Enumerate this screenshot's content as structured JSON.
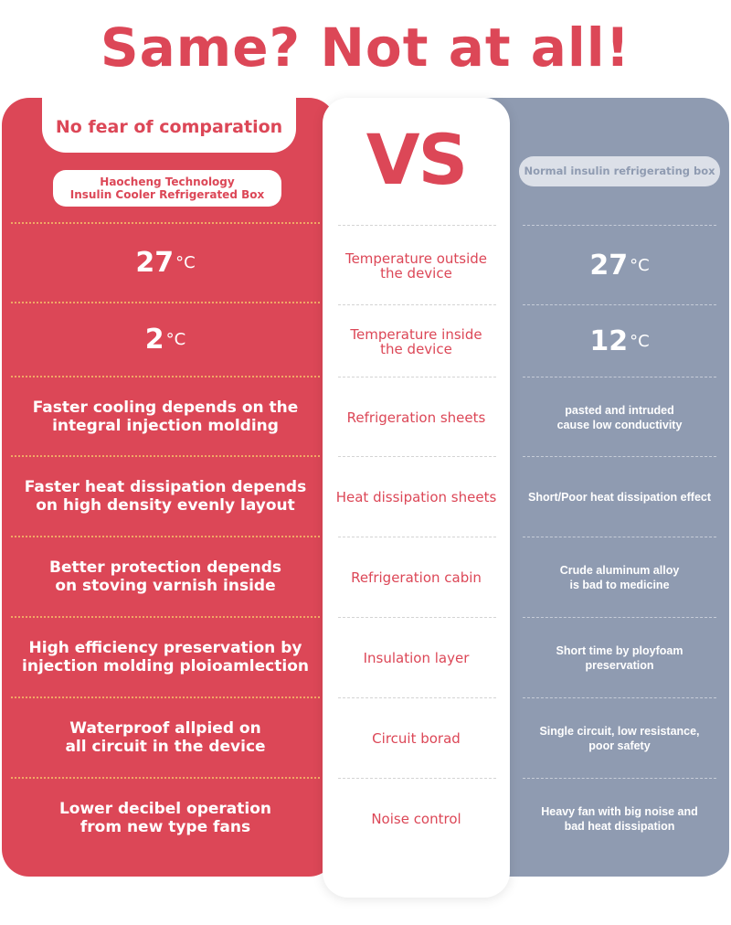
{
  "title": "Same? Not at all!",
  "left": {
    "tab": "No fear of comparation",
    "product_line1": "Haocheng Technology",
    "product_line2": "Insulin Cooler Refrigerated Box"
  },
  "middle": {
    "vs": "VS"
  },
  "right": {
    "product": "Normal insulin refrigerating box"
  },
  "rows": [
    {
      "left_value": "27",
      "left_unit": "°C",
      "feature": "Temperature outside\nthe device",
      "right_value": "27",
      "right_unit": "°C"
    },
    {
      "left_value": "2",
      "left_unit": "°C",
      "feature": "Temperature inside\nthe device",
      "right_value": "12",
      "right_unit": "°C"
    },
    {
      "left": "Faster cooling depends on the\nintegral injection molding",
      "feature": "Refrigeration sheets",
      "right": "pasted and intruded\ncause low conductivity"
    },
    {
      "left": "Faster heat dissipation depends\non high density evenly layout",
      "feature": "Heat dissipation sheets",
      "right": "Short/Poor heat dissipation effect"
    },
    {
      "left": "Better protection depends\non stoving varnish inside",
      "feature": "Refrigeration cabin",
      "right": "Crude aluminum alloy\nis bad to medicine"
    },
    {
      "left": "High efficiency preservation by\ninjection molding ploioamlection",
      "feature": "Insulation layer",
      "right": "Short time by ployfoam\npreservation"
    },
    {
      "left": "Waterproof allpied on\nall circuit in the device",
      "feature": "Circuit borad",
      "right": "Single circuit, low resistance,\npoor safety"
    },
    {
      "left": "Lower decibel operation\nfrom new type fans",
      "feature": "Noise control",
      "right": "Heavy fan with big noise and\nbad heat dissipation"
    }
  ],
  "colors": {
    "accent": "#dc4757",
    "gray_panel": "#8f9bb1",
    "divider": "#f0a865"
  }
}
